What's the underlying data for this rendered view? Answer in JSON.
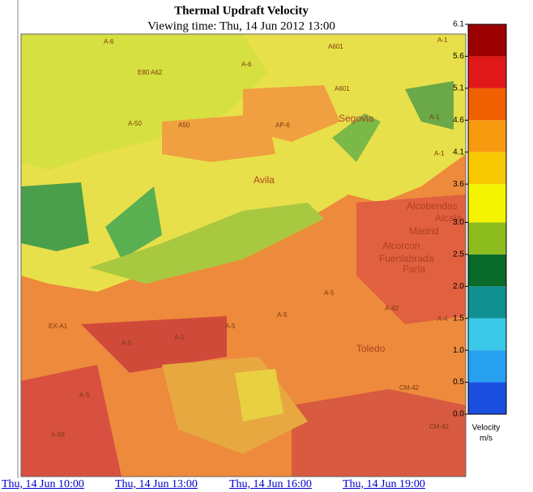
{
  "header": {
    "title": "Thermal Updraft Velocity",
    "subtitle": "Viewing time: Thu, 14 Jun 2012 13:00"
  },
  "map": {
    "labels": [
      "A-6",
      "A-1",
      "A601",
      "E80 A62",
      "A-6",
      "A601",
      "A-50",
      "A50",
      "AP-6",
      "Segovia",
      "A-1",
      "A-1",
      "Avila",
      "Alcobendas",
      "Alcala",
      "Madrid",
      "Alcorcon",
      "Fuenlabrada",
      "Parla",
      "A-5",
      "A-42",
      "A-5",
      "EX-A1",
      "A-5",
      "A-5",
      "A-5",
      "A-4",
      "Toledo",
      "A-5",
      "CM-42",
      "A-58",
      "CM-42"
    ]
  },
  "colorbar": {
    "lim": [
      0,
      6.1
    ],
    "ticks": [
      {
        "value": 0,
        "label": "0.0"
      },
      0.5,
      {
        "value": 1,
        "label": "1.0"
      },
      1.5,
      {
        "value": 2,
        "label": "2.0"
      },
      2.5,
      {
        "value": 3,
        "label": "3.0"
      },
      3.6,
      4.1,
      4.6,
      5.1,
      5.6,
      6.1
    ],
    "colors": [
      "#0000c0",
      "#1a4fe0",
      "#27a0f0",
      "#3ac8e8",
      "#109090",
      "#0a6a2a",
      "#8cbc1e",
      "#f4f400",
      "#f8c800",
      "#f89a10",
      "#f06000",
      "#e01818",
      "#9c0000"
    ],
    "label": "Velocity",
    "unit": "m/s"
  },
  "links": [
    "Thu, 14 Jun 10:00",
    "Thu, 14 Jun 13:00",
    "Thu, 14 Jun 16:00",
    "Thu, 14 Jun 19:00"
  ]
}
